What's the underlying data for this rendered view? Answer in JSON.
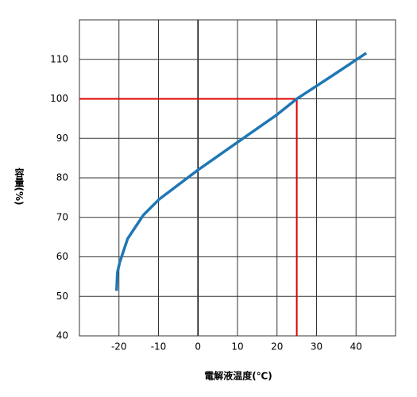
{
  "chart_data": {
    "type": "line",
    "x_label": "電解液温度(℃)",
    "y_label": "容量(%)",
    "xlim": [
      -30,
      50
    ],
    "ylim": [
      40,
      120
    ],
    "xticks": [
      -20,
      -10,
      0,
      10,
      20,
      30,
      40
    ],
    "yticks": [
      40,
      50,
      60,
      70,
      80,
      90,
      100,
      110
    ],
    "grid": true,
    "series": [
      {
        "color": "#1f77b4",
        "x": [
          -20.6,
          -20.4,
          -19.8,
          -17.8,
          -13.8,
          -9.8,
          0,
          10,
          20,
          25,
          34.2,
          42.6
        ],
        "values": [
          51.4,
          56,
          58.6,
          64.6,
          70.6,
          74.6,
          82,
          89,
          96,
          100,
          106,
          111.6
        ]
      }
    ],
    "reference": {
      "x": 25,
      "y": 100,
      "color": "#e00000"
    }
  }
}
